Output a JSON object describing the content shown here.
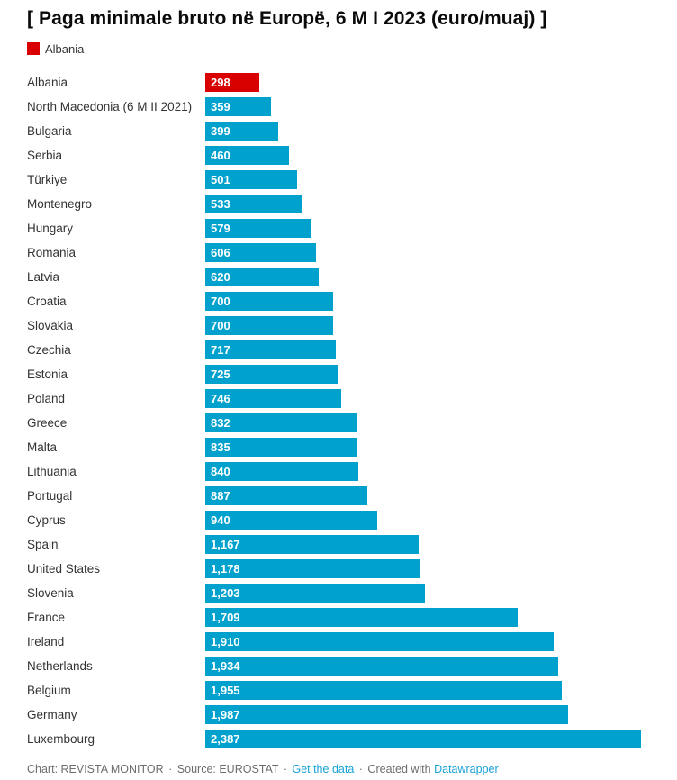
{
  "title": "[ Paga minimale bruto në Europë, 6 M I 2023 (euro/muaj) ]",
  "legend": {
    "label": "Albania"
  },
  "colors": {
    "bar": "#00a1cd",
    "highlight": "#d90000",
    "label_text": "#333333",
    "value_text": "#ffffff",
    "footer_text": "#6d6d6d",
    "link": "#18a1d6"
  },
  "chart_data": {
    "type": "bar",
    "orientation": "horizontal",
    "title": "[ Paga minimale bruto në Europë, 6 M I 2023 (euro/muaj) ]",
    "xlabel": "",
    "ylabel": "",
    "xlim": [
      0,
      2387
    ],
    "grid": false,
    "legend_position": "top-left",
    "highlight_category": "Albania",
    "categories": [
      "Albania",
      "North Macedonia (6 M II 2021)",
      "Bulgaria",
      "Serbia",
      "Türkiye",
      "Montenegro",
      "Hungary",
      "Romania",
      "Latvia",
      "Croatia",
      "Slovakia",
      "Czechia",
      "Estonia",
      "Poland",
      "Greece",
      "Malta",
      "Lithuania",
      "Portugal",
      "Cyprus",
      "Spain",
      "United States",
      "Slovenia",
      "France",
      "Ireland",
      "Netherlands",
      "Belgium",
      "Germany",
      "Luxembourg"
    ],
    "values": [
      298,
      359,
      399,
      460,
      501,
      533,
      579,
      606,
      620,
      700,
      700,
      717,
      725,
      746,
      832,
      835,
      840,
      887,
      940,
      1167,
      1178,
      1203,
      1709,
      1910,
      1934,
      1955,
      1987,
      2387
    ],
    "value_labels": [
      "298",
      "359",
      "399",
      "460",
      "501",
      "533",
      "579",
      "606",
      "620",
      "700",
      "700",
      "717",
      "725",
      "746",
      "832",
      "835",
      "840",
      "887",
      "940",
      "1,167",
      "1,178",
      "1,203",
      "1,709",
      "1,910",
      "1,934",
      "1,955",
      "1,987",
      "2,387"
    ]
  },
  "footer": {
    "chart_credit": "Chart: REVISTA MONITOR",
    "source": "Source: EUROSTAT",
    "get_data_link": "Get the data",
    "created_with": "Created with",
    "datawrapper_link": "Datawrapper",
    "separator": "·"
  }
}
